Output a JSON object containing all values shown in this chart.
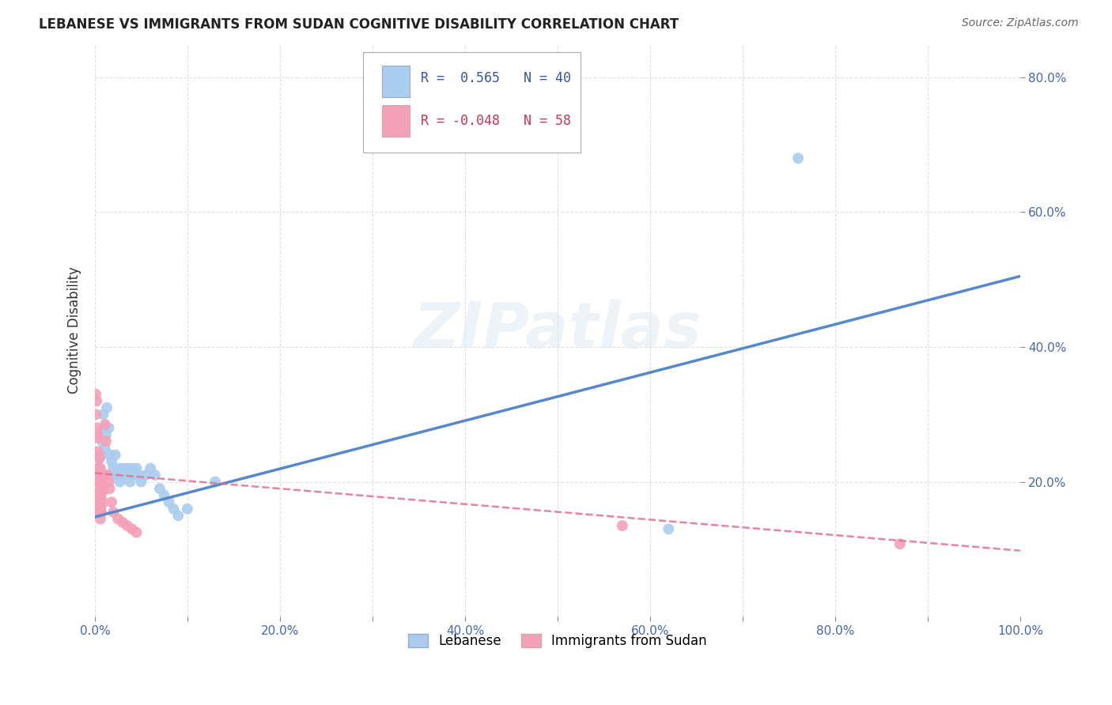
{
  "title": "LEBANESE VS IMMIGRANTS FROM SUDAN COGNITIVE DISABILITY CORRELATION CHART",
  "source": "Source: ZipAtlas.com",
  "ylabel": "Cognitive Disability",
  "xlabel": "",
  "xlim": [
    0.0,
    1.0
  ],
  "ylim": [
    0.0,
    0.85
  ],
  "xtick_labels": [
    "0.0%",
    "",
    "20.0%",
    "",
    "40.0%",
    "",
    "60.0%",
    "",
    "80.0%",
    "",
    "100.0%"
  ],
  "xtick_vals": [
    0.0,
    0.1,
    0.2,
    0.3,
    0.4,
    0.5,
    0.6,
    0.7,
    0.8,
    0.9,
    1.0
  ],
  "ytick_labels": [
    "20.0%",
    "40.0%",
    "60.0%",
    "80.0%"
  ],
  "ytick_vals": [
    0.2,
    0.4,
    0.6,
    0.8
  ],
  "R_blue": 0.565,
  "N_blue": 40,
  "R_pink": -0.048,
  "N_pink": 58,
  "blue_line_color": "#5588cc",
  "pink_line_color": "#e07090",
  "blue_scatter_color": "#aaccee",
  "pink_scatter_color": "#f4a0b8",
  "watermark_text": "ZIPatlas",
  "blue_points": [
    [
      0.004,
      0.215
    ],
    [
      0.005,
      0.235
    ],
    [
      0.007,
      0.24
    ],
    [
      0.008,
      0.26
    ],
    [
      0.009,
      0.3
    ],
    [
      0.01,
      0.28
    ],
    [
      0.011,
      0.25
    ],
    [
      0.012,
      0.27
    ],
    [
      0.013,
      0.31
    ],
    [
      0.015,
      0.28
    ],
    [
      0.016,
      0.24
    ],
    [
      0.018,
      0.23
    ],
    [
      0.019,
      0.21
    ],
    [
      0.02,
      0.22
    ],
    [
      0.022,
      0.24
    ],
    [
      0.023,
      0.21
    ],
    [
      0.025,
      0.22
    ],
    [
      0.027,
      0.2
    ],
    [
      0.028,
      0.21
    ],
    [
      0.03,
      0.22
    ],
    [
      0.032,
      0.21
    ],
    [
      0.035,
      0.22
    ],
    [
      0.038,
      0.2
    ],
    [
      0.04,
      0.22
    ],
    [
      0.042,
      0.21
    ],
    [
      0.045,
      0.22
    ],
    [
      0.048,
      0.21
    ],
    [
      0.05,
      0.2
    ],
    [
      0.055,
      0.21
    ],
    [
      0.06,
      0.22
    ],
    [
      0.065,
      0.21
    ],
    [
      0.07,
      0.19
    ],
    [
      0.075,
      0.18
    ],
    [
      0.08,
      0.17
    ],
    [
      0.085,
      0.16
    ],
    [
      0.09,
      0.15
    ],
    [
      0.1,
      0.16
    ],
    [
      0.13,
      0.2
    ],
    [
      0.62,
      0.13
    ],
    [
      0.76,
      0.68
    ]
  ],
  "pink_points": [
    [
      0.001,
      0.33
    ],
    [
      0.001,
      0.3
    ],
    [
      0.002,
      0.32
    ],
    [
      0.002,
      0.28
    ],
    [
      0.002,
      0.265
    ],
    [
      0.003,
      0.27
    ],
    [
      0.003,
      0.245
    ],
    [
      0.003,
      0.22
    ],
    [
      0.003,
      0.215
    ],
    [
      0.003,
      0.2
    ],
    [
      0.004,
      0.24
    ],
    [
      0.004,
      0.22
    ],
    [
      0.004,
      0.21
    ],
    [
      0.004,
      0.2
    ],
    [
      0.004,
      0.185
    ],
    [
      0.004,
      0.175
    ],
    [
      0.005,
      0.235
    ],
    [
      0.005,
      0.22
    ],
    [
      0.005,
      0.21
    ],
    [
      0.005,
      0.2
    ],
    [
      0.005,
      0.185
    ],
    [
      0.005,
      0.175
    ],
    [
      0.005,
      0.165
    ],
    [
      0.005,
      0.155
    ],
    [
      0.006,
      0.22
    ],
    [
      0.006,
      0.21
    ],
    [
      0.006,
      0.195
    ],
    [
      0.006,
      0.18
    ],
    [
      0.006,
      0.17
    ],
    [
      0.006,
      0.16
    ],
    [
      0.006,
      0.155
    ],
    [
      0.006,
      0.145
    ],
    [
      0.007,
      0.21
    ],
    [
      0.007,
      0.2
    ],
    [
      0.007,
      0.19
    ],
    [
      0.007,
      0.175
    ],
    [
      0.007,
      0.165
    ],
    [
      0.007,
      0.155
    ],
    [
      0.008,
      0.2
    ],
    [
      0.008,
      0.185
    ],
    [
      0.009,
      0.19
    ],
    [
      0.01,
      0.21
    ],
    [
      0.011,
      0.285
    ],
    [
      0.012,
      0.26
    ],
    [
      0.013,
      0.21
    ],
    [
      0.015,
      0.2
    ],
    [
      0.016,
      0.19
    ],
    [
      0.018,
      0.17
    ],
    [
      0.02,
      0.155
    ],
    [
      0.025,
      0.145
    ],
    [
      0.03,
      0.14
    ],
    [
      0.035,
      0.135
    ],
    [
      0.04,
      0.13
    ],
    [
      0.045,
      0.125
    ],
    [
      0.57,
      0.135
    ],
    [
      0.87,
      0.108
    ],
    [
      0.002,
      0.175
    ],
    [
      0.003,
      0.162
    ]
  ],
  "blue_line_x0": 0.0,
  "blue_line_y0": 0.148,
  "blue_line_x1": 1.0,
  "blue_line_y1": 0.505,
  "pink_line_x0": 0.0,
  "pink_line_y0": 0.213,
  "pink_line_x1": 1.0,
  "pink_line_y1": 0.098,
  "background_color": "#ffffff",
  "grid_color": "#cccccc"
}
